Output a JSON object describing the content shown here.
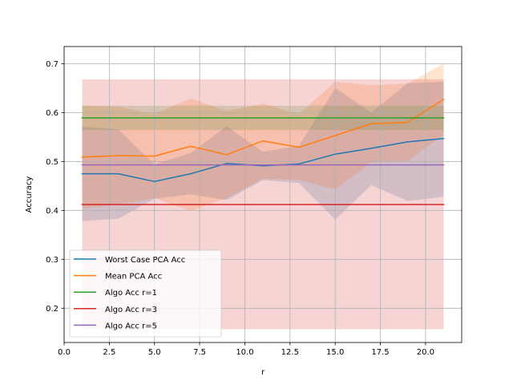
{
  "chart_data": {
    "type": "line",
    "xlabel": "r",
    "ylabel": "Accuracy",
    "xlim": [
      0.0,
      22.0
    ],
    "ylim": [
      0.13,
      0.735
    ],
    "xticks": [
      0.0,
      2.5,
      5.0,
      7.5,
      10.0,
      12.5,
      15.0,
      17.5,
      20.0
    ],
    "xtick_labels": [
      "0.0",
      "2.5",
      "5.0",
      "7.5",
      "10.0",
      "12.5",
      "15.0",
      "17.5",
      "20.0"
    ],
    "yticks": [
      0.2,
      0.3,
      0.4,
      0.5,
      0.6,
      0.7
    ],
    "ytick_labels": [
      "0.2",
      "0.3",
      "0.4",
      "0.5",
      "0.6",
      "0.7"
    ],
    "grid": true,
    "legend_position": "lower-left",
    "series": [
      {
        "name": "Worst Case PCA Acc",
        "color": "#1f77b4",
        "x": [
          1,
          3,
          5,
          7,
          9,
          11,
          13,
          15,
          17,
          19,
          21
        ],
        "y": [
          0.475,
          0.475,
          0.459,
          0.475,
          0.496,
          0.491,
          0.495,
          0.515,
          0.527,
          0.54,
          0.547
        ],
        "band_low": [
          0.378,
          0.383,
          0.424,
          0.433,
          0.421,
          0.462,
          0.456,
          0.381,
          0.452,
          0.419,
          0.428
        ],
        "band_high": [
          0.571,
          0.566,
          0.494,
          0.517,
          0.572,
          0.52,
          0.532,
          0.65,
          0.6,
          0.66,
          0.663
        ]
      },
      {
        "name": "Mean PCA Acc",
        "color": "#ff7f0e",
        "x": [
          1,
          3,
          5,
          7,
          9,
          11,
          13,
          15,
          17,
          19,
          21
        ],
        "y": [
          0.509,
          0.512,
          0.511,
          0.531,
          0.514,
          0.542,
          0.529,
          0.553,
          0.577,
          0.58,
          0.627
        ],
        "band_low": [
          0.404,
          0.412,
          0.425,
          0.399,
          0.425,
          0.465,
          0.462,
          0.443,
          0.498,
          0.501,
          0.554
        ],
        "band_high": [
          0.614,
          0.612,
          0.597,
          0.629,
          0.603,
          0.618,
          0.597,
          0.663,
          0.656,
          0.659,
          0.7
        ]
      },
      {
        "name": "Algo Acc r=1",
        "color": "#2ca02c",
        "x": [
          1,
          21
        ],
        "y": [
          0.589,
          0.589
        ],
        "band_low": [
          0.564,
          0.564
        ],
        "band_high": [
          0.614,
          0.614
        ]
      },
      {
        "name": "Algo Acc r=3",
        "color": "#d62728",
        "x": [
          1,
          21
        ],
        "y": [
          0.412,
          0.412
        ],
        "band_low": [
          0.157,
          0.157
        ],
        "band_high": [
          0.668,
          0.668
        ]
      },
      {
        "name": "Algo Acc r=5",
        "color": "#9467bd",
        "x": [
          1,
          21
        ],
        "y": [
          0.493,
          0.493
        ],
        "band_low": [
          0.493,
          0.493
        ],
        "band_high": [
          0.493,
          0.493
        ]
      }
    ]
  }
}
